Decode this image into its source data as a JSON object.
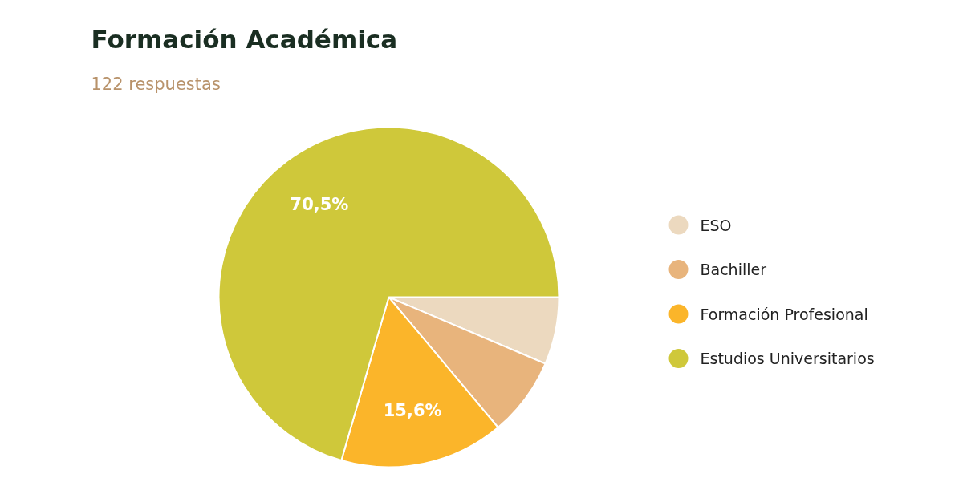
{
  "chart_data": {
    "type": "pie",
    "title": "Formación Académica",
    "subtitle": "122 respuestas",
    "categories": [
      "ESO",
      "Bachiller",
      "Formación Profesional",
      "Estudios Universitarios"
    ],
    "values": [
      6.4,
      7.5,
      15.6,
      70.5
    ],
    "colors": [
      "#ecd9bf",
      "#e8b47c",
      "#fbb52a",
      "#cfc83a"
    ],
    "value_labels": [
      null,
      null,
      "15,6%",
      "70,5%"
    ],
    "legend": "right"
  }
}
